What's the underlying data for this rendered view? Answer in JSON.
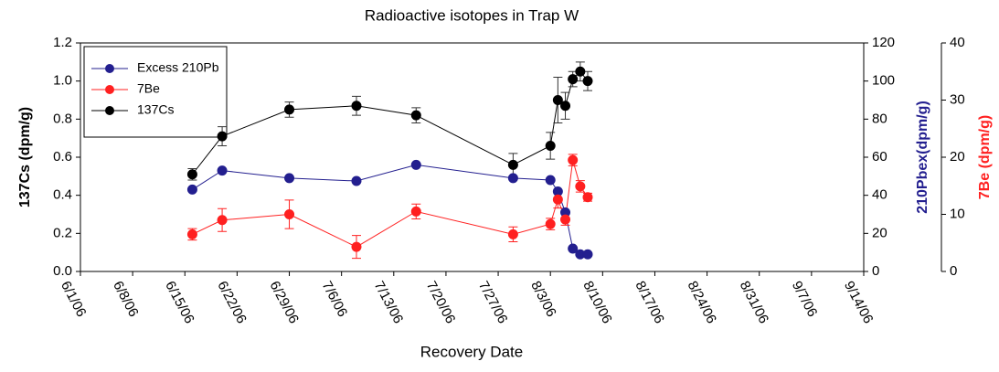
{
  "chart_data": {
    "type": "line",
    "title": "Radioactive isotopes in Trap W",
    "x_label": "Recovery Date",
    "y_label": "137Cs (dpm/g)",
    "y2_label": "210Pbex(dpm/g)",
    "y3_label": "7Be (dpm/g)",
    "xlim": [
      "6/1/06",
      "9/14/06"
    ],
    "xticks": [
      "6/1/06",
      "6/8/06",
      "6/15/06",
      "6/22/06",
      "6/29/06",
      "7/6/06",
      "7/13/06",
      "7/20/06",
      "7/27/06",
      "8/3/06",
      "8/10/06",
      "8/17/06",
      "8/24/06",
      "8/31/06",
      "9/7/06",
      "9/14/06"
    ],
    "ylim": [
      0,
      1.2
    ],
    "yticks": [
      {
        "value": 0,
        "label": "0.0"
      },
      {
        "value": 0.2,
        "label": "0.2"
      },
      {
        "value": 0.4,
        "label": "0.4"
      },
      {
        "value": 0.6,
        "label": "0.6"
      },
      {
        "value": 0.8,
        "label": "0.8"
      },
      {
        "value": 1,
        "label": "1.0"
      },
      {
        "value": 1.2,
        "label": "1.2"
      }
    ],
    "y2lim": [
      0,
      120
    ],
    "y2ticks": [
      0,
      20,
      40,
      60,
      80,
      100,
      120
    ],
    "y3lim": [
      0,
      40
    ],
    "y3ticks": [
      0,
      10,
      20,
      30,
      40
    ],
    "x": [
      "6/16/06",
      "6/20/06",
      "6/29/06",
      "7/8/06",
      "7/16/06",
      "7/29/06",
      "8/3/06",
      "8/4/06",
      "8/5/06",
      "8/6/06",
      "8/7/06",
      "8/8/06"
    ],
    "series": [
      {
        "name": "Excess 210Pb",
        "color": "#231f8f",
        "axis": "y2",
        "values": [
          43,
          53,
          49,
          47.5,
          56,
          49,
          48,
          42,
          31,
          12,
          9,
          9
        ]
      },
      {
        "name": "7Be",
        "color": "#ff2020",
        "axis": "y3",
        "values": [
          6.5,
          9,
          10,
          4.3,
          10.5,
          6.5,
          8.3,
          12.6,
          9.1,
          19.5,
          14.9,
          13
        ],
        "errors": [
          1,
          2,
          2.5,
          2,
          1.3,
          1.3,
          1,
          1.5,
          1,
          1,
          1,
          0.7
        ]
      },
      {
        "name": "137Cs",
        "color": "#000000",
        "axis": "y",
        "values": [
          0.51,
          0.71,
          0.85,
          0.87,
          0.82,
          0.56,
          0.66,
          0.9,
          0.87,
          1.01,
          1.05,
          1.0
        ],
        "errors": [
          0.03,
          0.05,
          0.04,
          0.05,
          0.04,
          0.06,
          0.07,
          0.12,
          0.07,
          0.04,
          0.05,
          0.05
        ]
      }
    ],
    "legend": "upper left"
  }
}
